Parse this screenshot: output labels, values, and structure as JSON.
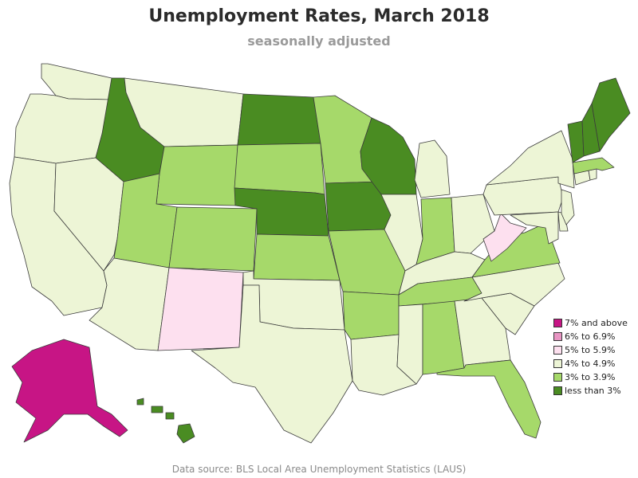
{
  "title": "Unemployment Rates, March 2018",
  "subtitle": "seasonally adjusted",
  "source": "Data source: BLS Local Area Unemployment Statistics (LAUS)",
  "legend": [
    {
      "label": "7% and above",
      "color": "#c71585"
    },
    {
      "label": "6% to 6.9%",
      "color": "#e895c3"
    },
    {
      "label": "5% to 5.9%",
      "color": "#fde0ef"
    },
    {
      "label": "4% to 4.9%",
      "color": "#edf5d6"
    },
    {
      "label": "3% to 3.9%",
      "color": "#a6d96a"
    },
    {
      "label": "less than 3%",
      "color": "#4a8c22"
    }
  ],
  "states": [
    {
      "name": "Washington",
      "rate_class": "4% to 4.9%"
    },
    {
      "name": "Oregon",
      "rate_class": "4% to 4.9%"
    },
    {
      "name": "California",
      "rate_class": "4% to 4.9%"
    },
    {
      "name": "Nevada",
      "rate_class": "4% to 4.9%"
    },
    {
      "name": "Idaho",
      "rate_class": "less than 3%"
    },
    {
      "name": "Montana",
      "rate_class": "4% to 4.9%"
    },
    {
      "name": "Wyoming",
      "rate_class": "3% to 3.9%"
    },
    {
      "name": "Utah",
      "rate_class": "3% to 3.9%"
    },
    {
      "name": "Arizona",
      "rate_class": "4% to 4.9%"
    },
    {
      "name": "Colorado",
      "rate_class": "3% to 3.9%"
    },
    {
      "name": "New Mexico",
      "rate_class": "5% to 5.9%"
    },
    {
      "name": "North Dakota",
      "rate_class": "less than 3%"
    },
    {
      "name": "South Dakota",
      "rate_class": "3% to 3.9%"
    },
    {
      "name": "Nebraska",
      "rate_class": "less than 3%"
    },
    {
      "name": "Kansas",
      "rate_class": "3% to 3.9%"
    },
    {
      "name": "Oklahoma",
      "rate_class": "4% to 4.9%"
    },
    {
      "name": "Texas",
      "rate_class": "4% to 4.9%"
    },
    {
      "name": "Minnesota",
      "rate_class": "3% to 3.9%"
    },
    {
      "name": "Iowa",
      "rate_class": "less than 3%"
    },
    {
      "name": "Missouri",
      "rate_class": "3% to 3.9%"
    },
    {
      "name": "Arkansas",
      "rate_class": "3% to 3.9%"
    },
    {
      "name": "Louisiana",
      "rate_class": "4% to 4.9%"
    },
    {
      "name": "Wisconsin",
      "rate_class": "less than 3%"
    },
    {
      "name": "Illinois",
      "rate_class": "4% to 4.9%"
    },
    {
      "name": "Michigan",
      "rate_class": "4% to 4.9%"
    },
    {
      "name": "Indiana",
      "rate_class": "3% to 3.9%"
    },
    {
      "name": "Ohio",
      "rate_class": "4% to 4.9%"
    },
    {
      "name": "Kentucky",
      "rate_class": "4% to 4.9%"
    },
    {
      "name": "Tennessee",
      "rate_class": "3% to 3.9%"
    },
    {
      "name": "Mississippi",
      "rate_class": "4% to 4.9%"
    },
    {
      "name": "Alabama",
      "rate_class": "3% to 3.9%"
    },
    {
      "name": "Georgia",
      "rate_class": "4% to 4.9%"
    },
    {
      "name": "Florida",
      "rate_class": "3% to 3.9%"
    },
    {
      "name": "South Carolina",
      "rate_class": "4% to 4.9%"
    },
    {
      "name": "North Carolina",
      "rate_class": "4% to 4.9%"
    },
    {
      "name": "Virginia",
      "rate_class": "3% to 3.9%"
    },
    {
      "name": "West Virginia",
      "rate_class": "5% to 5.9%"
    },
    {
      "name": "Pennsylvania",
      "rate_class": "4% to 4.9%"
    },
    {
      "name": "New York",
      "rate_class": "4% to 4.9%"
    },
    {
      "name": "Maryland",
      "rate_class": "4% to 4.9%"
    },
    {
      "name": "Delaware",
      "rate_class": "4% to 4.9%"
    },
    {
      "name": "New Jersey",
      "rate_class": "4% to 4.9%"
    },
    {
      "name": "Connecticut",
      "rate_class": "4% to 4.9%"
    },
    {
      "name": "Rhode Island",
      "rate_class": "4% to 4.9%"
    },
    {
      "name": "Massachusetts",
      "rate_class": "3% to 3.9%"
    },
    {
      "name": "Vermont",
      "rate_class": "less than 3%"
    },
    {
      "name": "New Hampshire",
      "rate_class": "less than 3%"
    },
    {
      "name": "Maine",
      "rate_class": "less than 3%"
    },
    {
      "name": "Alaska",
      "rate_class": "7% and above"
    },
    {
      "name": "Hawaii",
      "rate_class": "less than 3%"
    }
  ]
}
